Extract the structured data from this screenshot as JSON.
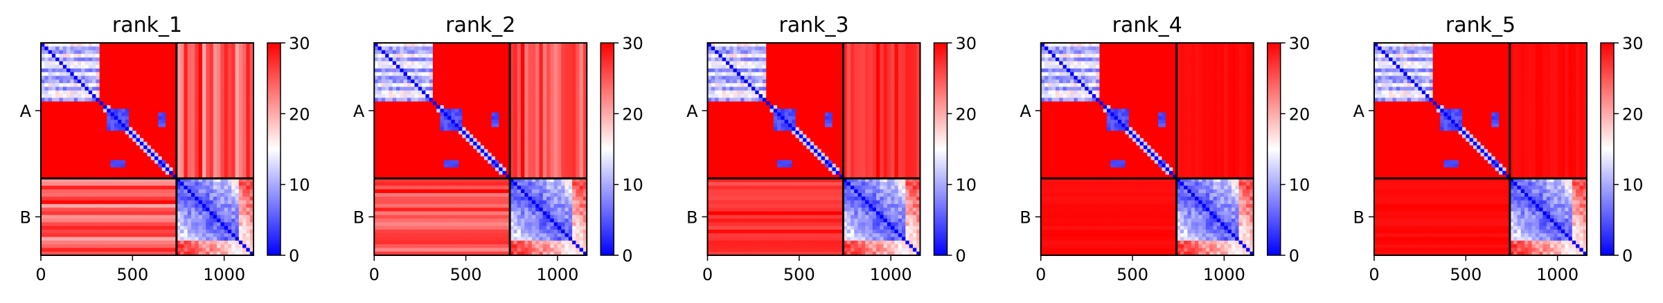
{
  "chart_data": {
    "type": "heatmap",
    "colormap": {
      "low": "#0000ff",
      "mid": "#ffffff",
      "high": "#ff0000"
    },
    "color_range": [
      0,
      30
    ],
    "colorbar_ticks": [
      "0",
      "10",
      "20",
      "30"
    ],
    "x_ticks": [
      0,
      500,
      1000
    ],
    "x_tick_labels": [
      "0",
      "500",
      "1000"
    ],
    "xlim": [
      0,
      1160
    ],
    "chain_labels": [
      "A",
      "B"
    ],
    "chain_boundary": 740,
    "panels": [
      {
        "title": "rank_1"
      },
      {
        "title": "rank_2"
      },
      {
        "title": "rank_3"
      },
      {
        "title": "rank_4"
      },
      {
        "title": "rank_5"
      }
    ]
  }
}
